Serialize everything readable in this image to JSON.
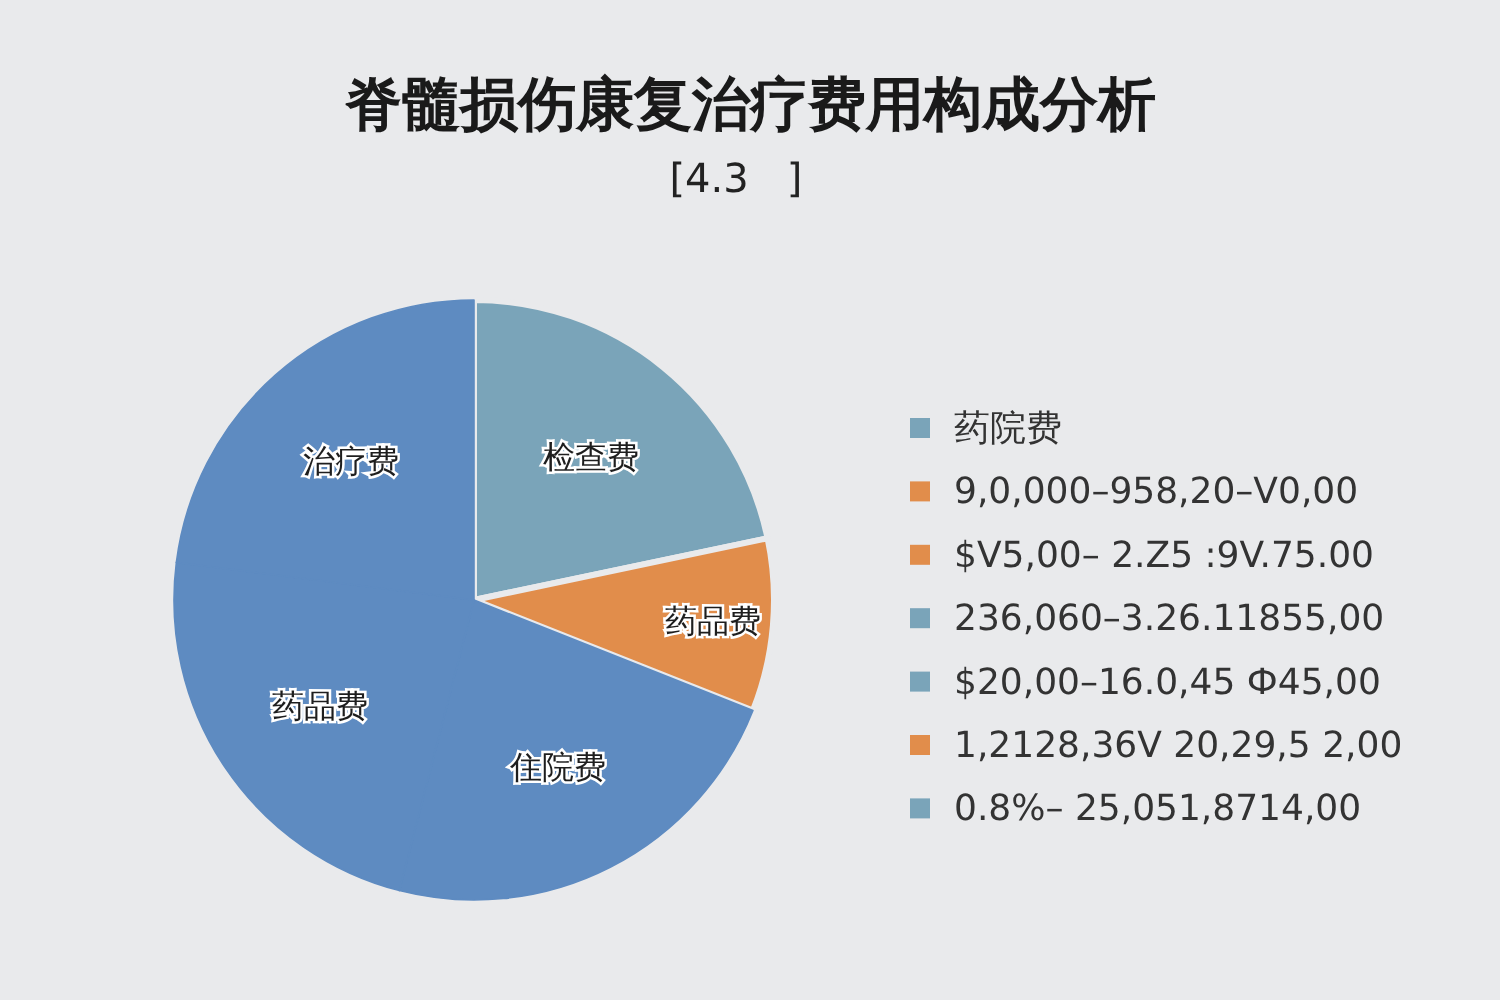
{
  "chart_data": {
    "type": "pie",
    "title": "脊髓损伤康复治疗费用构成分析",
    "subtitle": "[4.3   ]",
    "categories": [
      "检查费",
      "药品费",
      "住院费",
      "药品费",
      "治疗费"
    ],
    "values": [
      21.7,
      9.3,
      23,
      23,
      23
    ],
    "colors": [
      "#7aa4b9",
      "#e18d4b",
      "#5e8bc1",
      "#5e8bc1",
      "#5e8bc1"
    ],
    "annotations": [
      "药院费",
      "9,0,000–958,20–V0,00",
      "$V5,00– 2.Z5 :9V.75.00",
      "236,060–3.26.11855,00",
      "$20,00–16.0,45 Ф45,00",
      "1,2128,36V 20,29,5 2,00",
      "0.8%– 25,051,8714,00"
    ]
  }
}
